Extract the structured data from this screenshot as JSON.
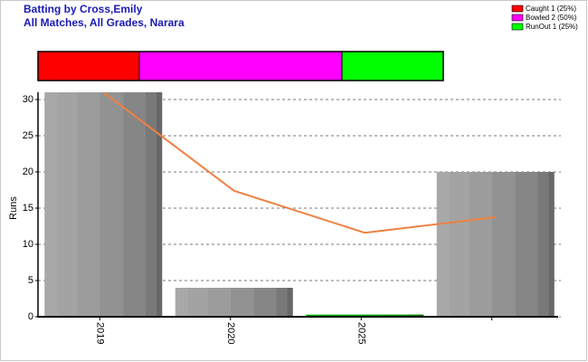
{
  "chart_data": {
    "type": "bar",
    "title": "Batting by Cross,Emily",
    "subtitle": "All Matches, All Grades, Narara",
    "ylabel": "Runs",
    "categories": [
      "2019",
      "2020",
      "2025",
      null
    ],
    "values": [
      31,
      4,
      0.3,
      20
    ],
    "colors": [
      "#a8a8a8",
      "#a8a8a8",
      "#00b000",
      "#a8a8a8"
    ],
    "trend": {
      "values": [
        31,
        17.4,
        11.6,
        13.75
      ],
      "color": "#f08040"
    },
    "ylim": [
      0,
      31
    ],
    "yticks": [
      0,
      5,
      10,
      15,
      20,
      25,
      30
    ],
    "grid": true,
    "dismissals": {
      "labels": [
        "Caught 1 (25%)",
        "Bowled 2 (50%)",
        "RunOut 1 (25%)"
      ],
      "values": [
        25,
        50,
        25
      ],
      "colors": [
        "#ff0000",
        "#ff00ff",
        "#00ff00"
      ]
    }
  }
}
